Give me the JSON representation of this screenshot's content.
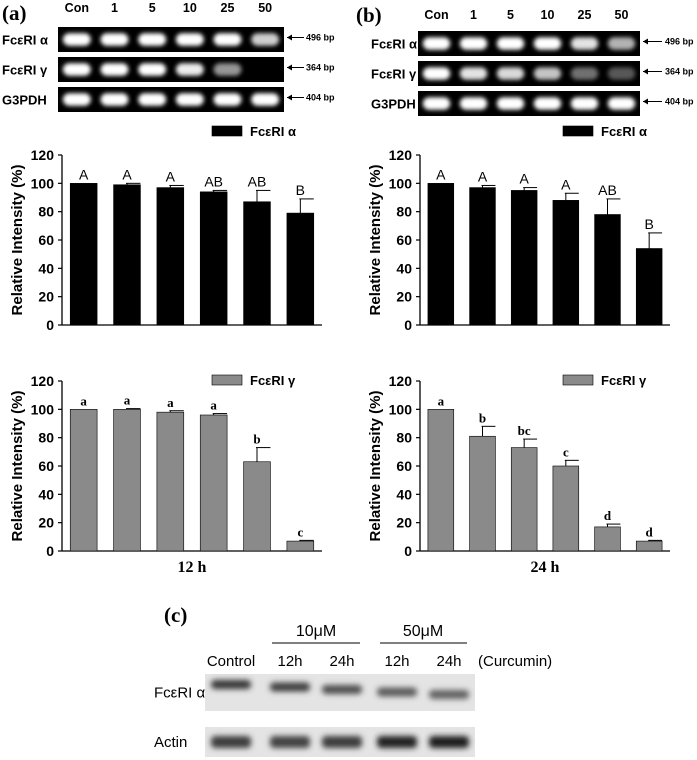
{
  "panels": {
    "a": {
      "label": "(a)",
      "lanes": [
        "Con",
        "1",
        "5",
        "10",
        "25",
        "50"
      ],
      "gel_rows": [
        {
          "name": "FcεRI α",
          "size": "496 bp",
          "bands": [
            1,
            1,
            1,
            1,
            1,
            0.75
          ]
        },
        {
          "name": "FcεRI γ",
          "size": "364 bp",
          "bands": [
            1,
            1,
            1,
            0.9,
            0.45,
            0
          ]
        },
        {
          "name": "G3PDH",
          "size": "404 bp",
          "bands": [
            1,
            1,
            1,
            1,
            1,
            1
          ]
        }
      ],
      "time_label": "12 h"
    },
    "b": {
      "label": "(b)",
      "lanes": [
        "Con",
        "1",
        "5",
        "10",
        "25",
        "50"
      ],
      "gel_rows": [
        {
          "name": "FcεRI α",
          "size": "496 bp",
          "bands": [
            1,
            1,
            1,
            1,
            0.85,
            0.6
          ]
        },
        {
          "name": "FcεRI γ",
          "size": "364 bp",
          "bands": [
            1,
            0.85,
            0.8,
            0.7,
            0.25,
            0.12
          ]
        },
        {
          "name": "G3PDH",
          "size": "404 bp",
          "bands": [
            1,
            1,
            1,
            1,
            1,
            1
          ]
        }
      ],
      "time_label": "24 h"
    },
    "c": {
      "label": "(c)",
      "columns": [
        "Control",
        "12h",
        "24h",
        "12h",
        "24h"
      ],
      "groups": [
        "10μM",
        "50μM"
      ],
      "treatment": "(Curcumin)",
      "rows": [
        {
          "name": "FcεRI α",
          "bands": [
            0.8,
            0.75,
            0.6,
            0.5,
            0.45
          ]
        },
        {
          "name": "Actin",
          "bands": [
            0.75,
            0.7,
            0.75,
            0.95,
            1
          ]
        }
      ]
    }
  },
  "chart_data": [
    {
      "type": "bar",
      "panel": "a",
      "legend": "FcεRI α",
      "color": "#000000",
      "categories": [
        "Con",
        "1",
        "5",
        "10",
        "25",
        "50"
      ],
      "values": [
        100,
        99,
        97,
        94,
        87,
        79
      ],
      "errors": [
        0,
        1,
        1.5,
        1,
        8,
        10
      ],
      "letters": [
        "A",
        "A",
        "A",
        "AB",
        "AB",
        "B"
      ],
      "ylabel": "Relative Intensity (%)",
      "ylim": [
        0,
        120
      ],
      "yticks": [
        0,
        20,
        40,
        60,
        80,
        100,
        120
      ],
      "xlabel": ""
    },
    {
      "type": "bar",
      "panel": "b",
      "legend": "FcεRI α",
      "color": "#000000",
      "categories": [
        "Con",
        "1",
        "5",
        "10",
        "25",
        "50"
      ],
      "values": [
        100,
        97,
        95,
        88,
        78,
        54
      ],
      "errors": [
        0,
        1.5,
        2,
        5,
        11,
        11
      ],
      "letters": [
        "A",
        "A",
        "A",
        "A",
        "AB",
        "B"
      ],
      "ylabel": "Relative Intensity (%)",
      "ylim": [
        0,
        120
      ],
      "yticks": [
        0,
        20,
        40,
        60,
        80,
        100,
        120
      ],
      "xlabel": ""
    },
    {
      "type": "bar",
      "panel": "a",
      "legend": "FcεRI γ",
      "color": "#8a8a8a",
      "categories": [
        "Con",
        "1",
        "5",
        "10",
        "25",
        "50"
      ],
      "values": [
        100,
        100,
        98,
        96,
        63,
        7
      ],
      "errors": [
        0,
        0.5,
        1,
        1,
        10,
        0.5
      ],
      "letters": [
        "a",
        "a",
        "a",
        "a",
        "b",
        "c"
      ],
      "ylabel": "Relative Intensity (%)",
      "ylim": [
        0,
        120
      ],
      "yticks": [
        0,
        20,
        40,
        60,
        80,
        100,
        120
      ],
      "xlabel": "12 h"
    },
    {
      "type": "bar",
      "panel": "b",
      "legend": "FcεRI γ",
      "color": "#8a8a8a",
      "categories": [
        "Con",
        "1",
        "5",
        "10",
        "25",
        "50"
      ],
      "values": [
        100,
        81,
        73,
        60,
        17,
        7
      ],
      "errors": [
        0,
        7,
        6,
        4,
        2,
        0.5
      ],
      "letters": [
        "a",
        "b",
        "bc",
        "c",
        "d",
        "d"
      ],
      "ylabel": "Relative Intensity (%)",
      "ylim": [
        0,
        120
      ],
      "yticks": [
        0,
        20,
        40,
        60,
        80,
        100,
        120
      ],
      "xlabel": "24 h"
    }
  ]
}
